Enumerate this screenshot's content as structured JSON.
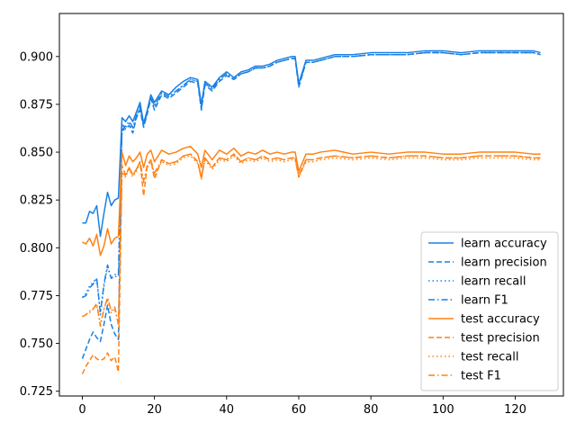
{
  "chart_data": {
    "type": "line",
    "title": "",
    "xlabel": "",
    "ylabel": "",
    "xlim": [
      -6.35,
      133.35
    ],
    "ylim": [
      0.7225,
      0.9225
    ],
    "x_ticks": [
      0,
      20,
      40,
      60,
      80,
      100,
      120
    ],
    "x_tick_labels": [
      "0",
      "20",
      "40",
      "60",
      "80",
      "100",
      "120"
    ],
    "y_ticks": [
      0.725,
      0.75,
      0.775,
      0.8,
      0.825,
      0.85,
      0.875,
      0.9
    ],
    "y_tick_labels": [
      "0.725",
      "0.750",
      "0.775",
      "0.800",
      "0.825",
      "0.850",
      "0.875",
      "0.900"
    ],
    "grid": false,
    "legend_position": "lower right",
    "colors": {
      "learn": "#1a80e6",
      "test": "#ff8214"
    },
    "x": [
      0,
      1,
      2,
      3,
      4,
      5,
      6,
      7,
      8,
      9,
      10,
      11,
      12,
      13,
      14,
      15,
      16,
      17,
      18,
      19,
      20,
      22,
      24,
      26,
      28,
      30,
      32,
      33,
      34,
      36,
      38,
      40,
      42,
      44,
      46,
      48,
      50,
      52,
      54,
      56,
      58,
      59,
      60,
      62,
      64,
      66,
      70,
      75,
      80,
      85,
      90,
      95,
      100,
      105,
      110,
      115,
      120,
      125,
      127
    ],
    "series": [
      {
        "name": "learn accuracy",
        "group": "learn",
        "dash": "solid",
        "values": [
          0.813,
          0.813,
          0.819,
          0.818,
          0.822,
          0.806,
          0.818,
          0.829,
          0.822,
          0.825,
          0.826,
          0.868,
          0.866,
          0.869,
          0.866,
          0.871,
          0.876,
          0.865,
          0.872,
          0.88,
          0.876,
          0.882,
          0.88,
          0.884,
          0.887,
          0.889,
          0.888,
          0.875,
          0.887,
          0.884,
          0.889,
          0.892,
          0.889,
          0.892,
          0.893,
          0.895,
          0.895,
          0.896,
          0.898,
          0.899,
          0.9,
          0.9,
          0.886,
          0.898,
          0.898,
          0.899,
          0.901,
          0.901,
          0.902,
          0.902,
          0.902,
          0.903,
          0.903,
          0.902,
          0.903,
          0.903,
          0.903,
          0.903,
          0.902
        ]
      },
      {
        "name": "learn precision",
        "group": "learn",
        "dash": "dashed",
        "values": [
          0.742,
          0.747,
          0.752,
          0.756,
          0.753,
          0.751,
          0.76,
          0.77,
          0.76,
          0.755,
          0.752,
          0.865,
          0.862,
          0.864,
          0.86,
          0.868,
          0.872,
          0.863,
          0.87,
          0.878,
          0.872,
          0.88,
          0.878,
          0.881,
          0.884,
          0.887,
          0.886,
          0.872,
          0.885,
          0.882,
          0.887,
          0.89,
          0.888,
          0.891,
          0.892,
          0.894,
          0.894,
          0.895,
          0.897,
          0.898,
          0.899,
          0.899,
          0.884,
          0.897,
          0.897,
          0.898,
          0.9,
          0.9,
          0.901,
          0.901,
          0.901,
          0.902,
          0.902,
          0.901,
          0.902,
          0.902,
          0.902,
          0.902,
          0.901
        ]
      },
      {
        "name": "learn recall",
        "group": "learn",
        "dash": "dotted",
        "values": [
          0.774,
          0.776,
          0.78,
          0.782,
          0.784,
          0.765,
          0.78,
          0.79,
          0.784,
          0.785,
          0.785,
          0.86,
          0.863,
          0.865,
          0.862,
          0.869,
          0.873,
          0.864,
          0.871,
          0.879,
          0.874,
          0.881,
          0.879,
          0.882,
          0.885,
          0.888,
          0.887,
          0.873,
          0.886,
          0.883,
          0.888,
          0.891,
          0.888,
          0.891,
          0.892,
          0.894,
          0.894,
          0.895,
          0.897,
          0.898,
          0.899,
          0.899,
          0.885,
          0.897,
          0.897,
          0.898,
          0.9,
          0.9,
          0.901,
          0.901,
          0.901,
          0.902,
          0.902,
          0.901,
          0.902,
          0.902,
          0.902,
          0.902,
          0.901
        ]
      },
      {
        "name": "learn F1",
        "group": "learn",
        "dash": "dashdot",
        "values": [
          0.774,
          0.775,
          0.779,
          0.781,
          0.784,
          0.766,
          0.781,
          0.791,
          0.784,
          0.786,
          0.786,
          0.861,
          0.864,
          0.866,
          0.863,
          0.869,
          0.874,
          0.864,
          0.871,
          0.879,
          0.874,
          0.881,
          0.879,
          0.882,
          0.885,
          0.888,
          0.887,
          0.873,
          0.886,
          0.883,
          0.888,
          0.891,
          0.888,
          0.891,
          0.892,
          0.894,
          0.894,
          0.895,
          0.897,
          0.898,
          0.899,
          0.899,
          0.885,
          0.897,
          0.897,
          0.898,
          0.9,
          0.9,
          0.901,
          0.901,
          0.901,
          0.902,
          0.902,
          0.901,
          0.902,
          0.902,
          0.902,
          0.902,
          0.901
        ]
      },
      {
        "name": "test accuracy",
        "group": "test",
        "dash": "solid",
        "values": [
          0.803,
          0.802,
          0.805,
          0.801,
          0.807,
          0.796,
          0.801,
          0.81,
          0.802,
          0.805,
          0.806,
          0.85,
          0.843,
          0.848,
          0.845,
          0.847,
          0.85,
          0.842,
          0.849,
          0.851,
          0.845,
          0.851,
          0.849,
          0.85,
          0.852,
          0.853,
          0.849,
          0.842,
          0.851,
          0.846,
          0.851,
          0.849,
          0.852,
          0.848,
          0.85,
          0.849,
          0.851,
          0.849,
          0.85,
          0.849,
          0.85,
          0.85,
          0.84,
          0.849,
          0.849,
          0.85,
          0.851,
          0.849,
          0.85,
          0.849,
          0.85,
          0.85,
          0.849,
          0.849,
          0.85,
          0.85,
          0.85,
          0.849,
          0.849
        ]
      },
      {
        "name": "test precision",
        "group": "test",
        "dash": "dashed",
        "values": [
          0.734,
          0.738,
          0.741,
          0.744,
          0.742,
          0.741,
          0.742,
          0.745,
          0.741,
          0.743,
          0.735,
          0.843,
          0.838,
          0.842,
          0.838,
          0.841,
          0.845,
          0.827,
          0.843,
          0.846,
          0.836,
          0.846,
          0.844,
          0.845,
          0.848,
          0.849,
          0.845,
          0.836,
          0.847,
          0.842,
          0.847,
          0.846,
          0.849,
          0.845,
          0.847,
          0.846,
          0.848,
          0.846,
          0.847,
          0.846,
          0.847,
          0.847,
          0.837,
          0.846,
          0.846,
          0.847,
          0.848,
          0.847,
          0.848,
          0.847,
          0.848,
          0.848,
          0.847,
          0.847,
          0.848,
          0.848,
          0.848,
          0.847,
          0.847
        ]
      },
      {
        "name": "test recall",
        "group": "test",
        "dash": "dotted",
        "values": [
          0.764,
          0.765,
          0.766,
          0.768,
          0.77,
          0.76,
          0.768,
          0.773,
          0.766,
          0.768,
          0.76,
          0.838,
          0.837,
          0.841,
          0.837,
          0.84,
          0.844,
          0.834,
          0.842,
          0.845,
          0.838,
          0.845,
          0.843,
          0.844,
          0.847,
          0.848,
          0.844,
          0.836,
          0.846,
          0.841,
          0.846,
          0.845,
          0.848,
          0.844,
          0.846,
          0.845,
          0.847,
          0.845,
          0.846,
          0.845,
          0.846,
          0.846,
          0.837,
          0.845,
          0.845,
          0.846,
          0.847,
          0.846,
          0.847,
          0.846,
          0.847,
          0.847,
          0.846,
          0.846,
          0.847,
          0.847,
          0.847,
          0.846,
          0.846
        ]
      },
      {
        "name": "test F1",
        "group": "test",
        "dash": "dashdot",
        "values": [
          0.764,
          0.765,
          0.767,
          0.768,
          0.771,
          0.759,
          0.768,
          0.774,
          0.767,
          0.769,
          0.76,
          0.839,
          0.838,
          0.842,
          0.838,
          0.841,
          0.845,
          0.835,
          0.843,
          0.846,
          0.839,
          0.846,
          0.844,
          0.845,
          0.848,
          0.849,
          0.845,
          0.837,
          0.847,
          0.842,
          0.847,
          0.846,
          0.849,
          0.845,
          0.847,
          0.846,
          0.848,
          0.846,
          0.847,
          0.846,
          0.847,
          0.847,
          0.838,
          0.846,
          0.846,
          0.847,
          0.848,
          0.847,
          0.848,
          0.847,
          0.848,
          0.848,
          0.847,
          0.847,
          0.848,
          0.848,
          0.848,
          0.847,
          0.847
        ]
      }
    ]
  }
}
